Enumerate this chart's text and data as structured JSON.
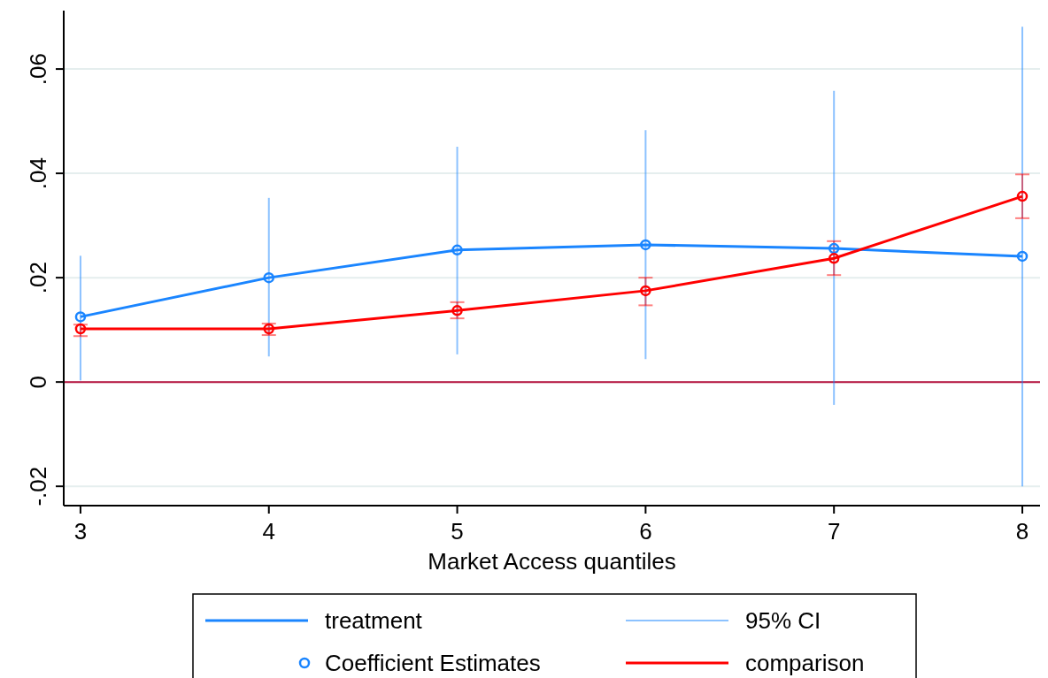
{
  "chart_data": {
    "type": "line",
    "xlabel": "Market Access quantiles",
    "x": [
      3,
      4,
      5,
      6,
      7,
      8
    ],
    "xlim": [
      2.911,
      8.094
    ],
    "xticks": [
      3,
      4,
      5,
      6,
      7,
      8
    ],
    "ylim": [
      -0.0237,
      0.0712
    ],
    "yticks": [
      {
        "value": -0.02,
        "label": "-.02"
      },
      0,
      {
        "value": 0.02,
        "label": ".02"
      },
      {
        "value": 0.04,
        "label": ".04"
      },
      {
        "value": 0.06,
        "label": ".06"
      }
    ],
    "grid": "y",
    "legend": "bottom",
    "series": [
      {
        "name": "treatment",
        "color": "#1a85ff",
        "marker": "none",
        "values": [
          0.0125,
          0.02,
          0.0253,
          0.0263,
          0.0256,
          0.0241
        ]
      },
      {
        "name": "Coefficient Estimates",
        "type": "scatter",
        "color": "#1a85ff",
        "marker": "circle",
        "values": [
          0.0125,
          0.02,
          0.0253,
          0.0263,
          0.0256,
          0.0241
        ],
        "errors": [
          [
            0.0003,
            0.0242
          ],
          [
            0.0049,
            0.0353
          ],
          [
            0.0053,
            0.0451
          ],
          [
            0.0044,
            0.0483
          ],
          [
            -0.0044,
            0.0558
          ],
          [
            -0.02,
            0.0681
          ]
        ]
      },
      {
        "name": "comparison",
        "color": "#ff0000",
        "marker": "circle",
        "values": [
          0.0102,
          0.0102,
          0.0137,
          0.0175,
          0.0237,
          0.0356
        ],
        "errors": [
          [
            0.0088,
            0.011
          ],
          [
            0.009,
            0.0112
          ],
          [
            0.0122,
            0.0153
          ],
          [
            0.0147,
            0.02
          ],
          [
            0.0205,
            0.027
          ],
          [
            0.0314,
            0.0398
          ]
        ]
      }
    ],
    "annotations": [
      "95% CI"
    ],
    "ref_lines": [
      {
        "axis": "y",
        "value": 0,
        "color": "#b5103c"
      }
    ]
  }
}
